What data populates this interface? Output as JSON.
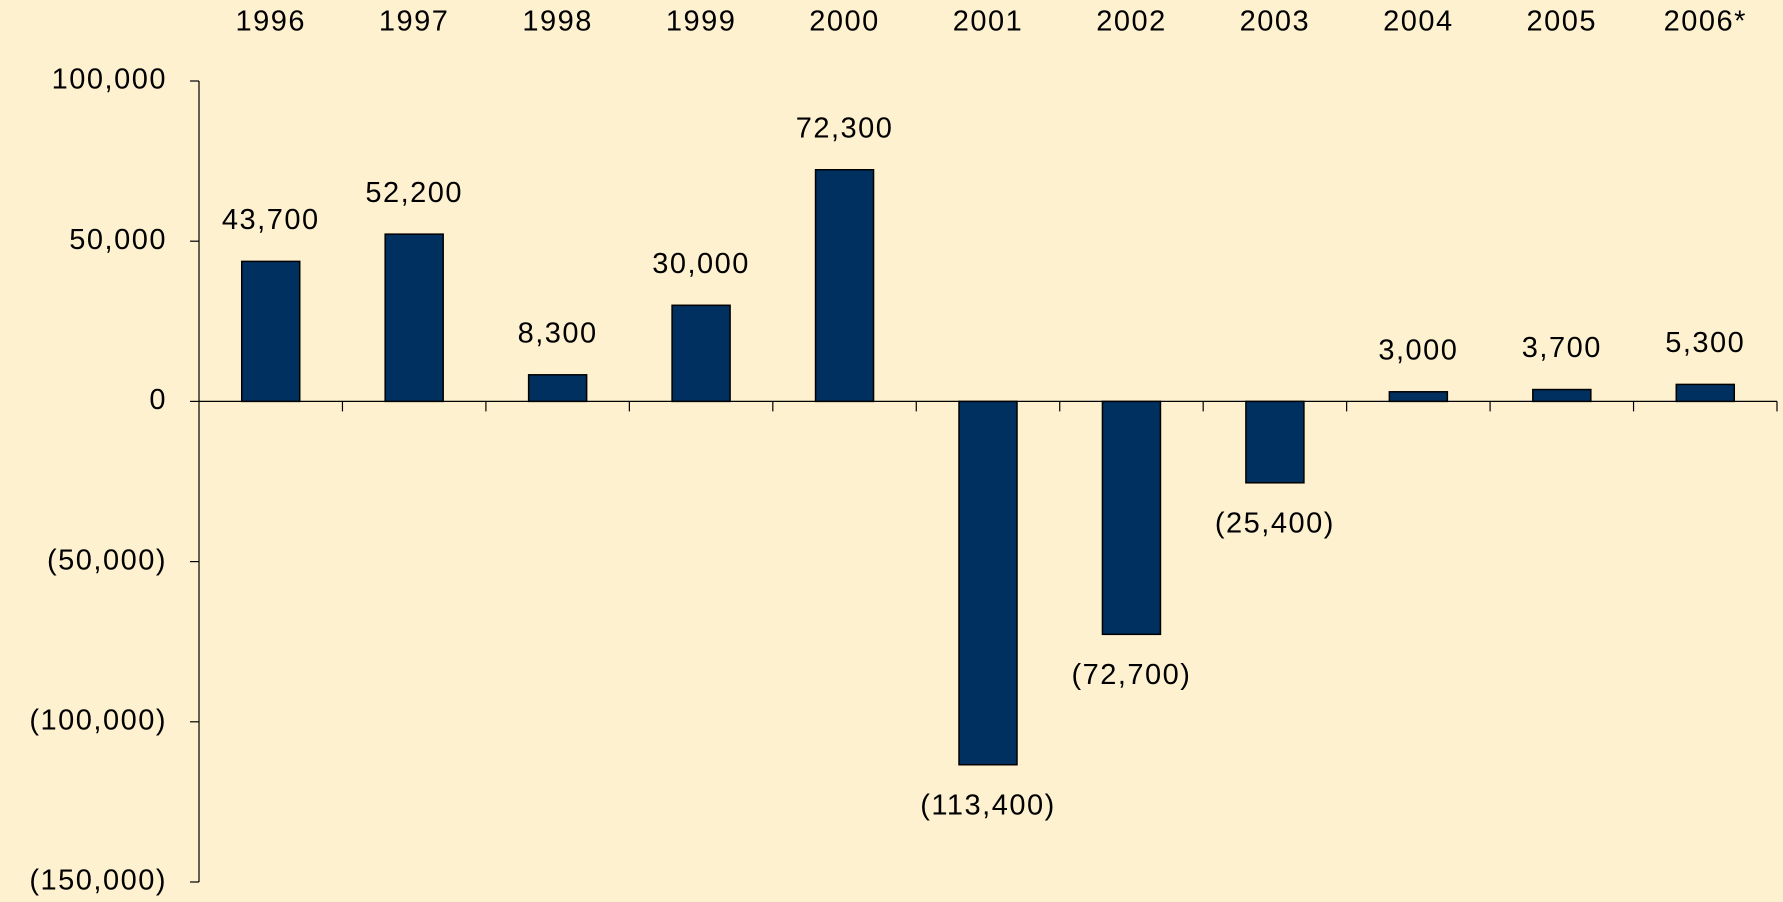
{
  "chart_data": {
    "type": "bar",
    "categories": [
      "1996",
      "1997",
      "1998",
      "1999",
      "2000",
      "2001",
      "2002",
      "2003",
      "2004",
      "2005",
      "2006*"
    ],
    "values": [
      43700,
      52200,
      8300,
      30000,
      72300,
      -113400,
      -72700,
      -25400,
      3000,
      3700,
      5300
    ],
    "value_labels": [
      "43,700",
      "52,200",
      "8,300",
      "30,000",
      "72,300",
      "(113,400)",
      "(72,700)",
      "(25,400)",
      "3,000",
      "3,700",
      "5,300"
    ],
    "color": "#00305f",
    "ylim": [
      -150000,
      100000
    ],
    "yticks": [
      {
        "value": -150000,
        "label": "(150,000)"
      },
      {
        "value": -100000,
        "label": "(100,000)"
      },
      {
        "value": -50000,
        "label": "(50,000)"
      },
      0,
      {
        "value": 50000,
        "label": "50,000"
      },
      {
        "value": 100000,
        "label": "100,000"
      }
    ],
    "grid": false
  }
}
